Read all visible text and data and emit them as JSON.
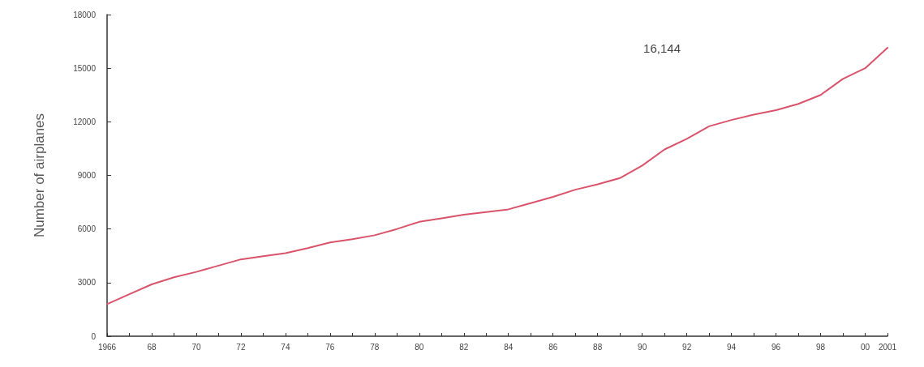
{
  "chart_data": {
    "type": "line",
    "ylabel": "Number of airplanes",
    "categories": [
      "1966",
      null,
      "68",
      null,
      "70",
      null,
      "72",
      null,
      "74",
      null,
      "76",
      null,
      "78",
      null,
      "80",
      null,
      "82",
      null,
      "84",
      null,
      "86",
      null,
      "88",
      null,
      "90",
      null,
      "92",
      null,
      "94",
      null,
      "96",
      null,
      "98",
      null,
      "00",
      "2001"
    ],
    "series": [
      {
        "color": "#d9536b",
        "values": [
          1800,
          2350,
          2900,
          3300,
          3600,
          3950,
          4300,
          4480,
          4650,
          4930,
          5250,
          5430,
          5650,
          6000,
          6400,
          6600,
          6800,
          6950,
          7100,
          7450,
          7800,
          8200,
          8500,
          8850,
          9550,
          10450,
          11050,
          11750,
          12100,
          12400,
          12650,
          13000,
          13500,
          14400,
          15000,
          16144
        ]
      }
    ],
    "ylim": [
      0,
      18000
    ],
    "yticks": [
      0,
      3000,
      6000,
      9000,
      12000,
      15000,
      18000
    ],
    "annotations": [
      "16,144"
    ],
    "grid": false,
    "marker": "none",
    "line_style": "solid"
  }
}
